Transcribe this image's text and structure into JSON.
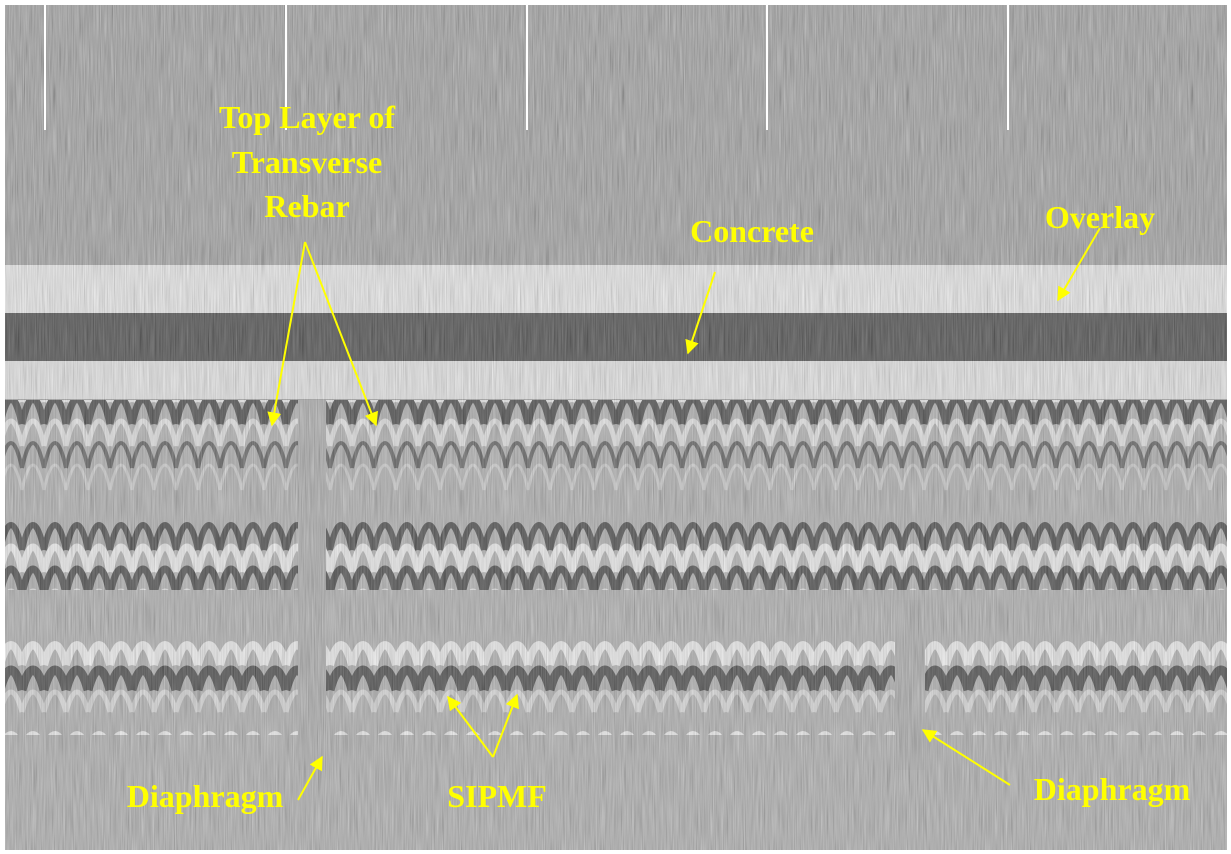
{
  "annotations": {
    "rebar": [
      "Top Layer of",
      "Transverse",
      "Rebar"
    ],
    "concrete": "Concrete",
    "overlay": "Overlay",
    "diaphragm_left": "Diaphragm",
    "sipmf": "SIPMF",
    "diaphragm_right": "Diaphragm"
  }
}
